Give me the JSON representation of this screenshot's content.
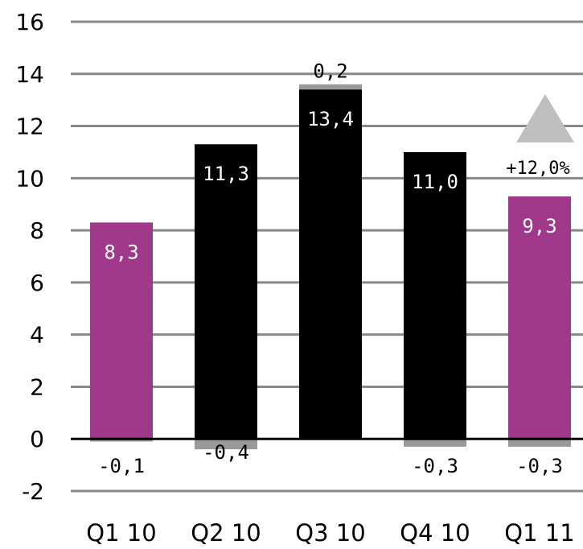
{
  "chart_data": {
    "type": "bar",
    "title": "",
    "xlabel": "",
    "ylabel": "",
    "ylim": [
      -2,
      16
    ],
    "yticks": [
      "16",
      "14",
      "12",
      "10",
      "8",
      "6",
      "4",
      "2",
      "0",
      "-2"
    ],
    "grid": true,
    "categories": [
      "Q1 10",
      "Q2 10",
      "Q3 10",
      "Q4 10",
      "Q1 11"
    ],
    "values": [
      8.3,
      11.3,
      13.4,
      11.0,
      9.3
    ],
    "value_labels": [
      "8,3",
      "11,3",
      "13,4",
      "11,0",
      "9,3"
    ],
    "bar_colors": [
      "#a0398a",
      "#000000",
      "#000000",
      "#000000",
      "#a0398a"
    ],
    "adjustments": [
      -0.1,
      -0.4,
      0.2,
      -0.3,
      -0.3
    ],
    "adjustment_labels": [
      "-0,1",
      "-0,4",
      "0,2",
      "-0,3",
      "-0,3"
    ],
    "adjustment_color": "#999999",
    "growth_annotation": {
      "label": "+12,0%",
      "icon": "up-triangle-icon",
      "color": "#bfbfbf"
    }
  }
}
